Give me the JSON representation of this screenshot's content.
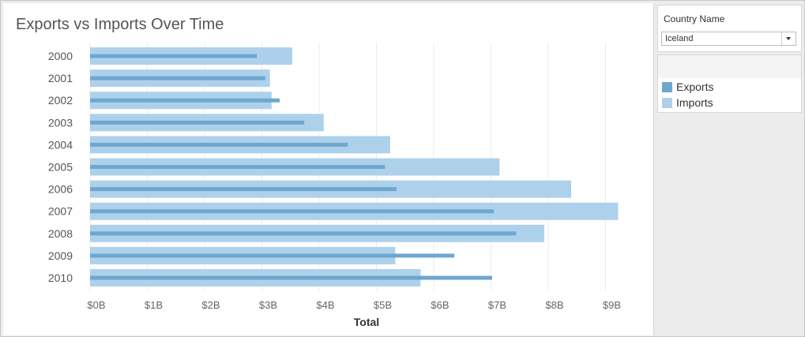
{
  "chart_data": {
    "type": "bar",
    "title": "Exports vs Imports Over Time",
    "orientation": "horizontal",
    "categories": [
      "2000",
      "2001",
      "2002",
      "2003",
      "2004",
      "2005",
      "2006",
      "2007",
      "2008",
      "2009",
      "2010"
    ],
    "series": [
      {
        "name": "Imports",
        "values": [
          3.53,
          3.14,
          3.17,
          4.08,
          5.24,
          7.15,
          8.4,
          9.22,
          7.93,
          5.33,
          5.77
        ],
        "color": "#aed1eb"
      },
      {
        "name": "Exports",
        "values": [
          2.91,
          3.06,
          3.31,
          3.74,
          4.5,
          5.15,
          5.35,
          7.05,
          7.44,
          6.36,
          7.02
        ],
        "color": "#6ea7d0"
      }
    ],
    "xlabel": "Total",
    "ylabel": "",
    "xlim": [
      0,
      9.7
    ],
    "xticks": [
      0,
      1,
      2,
      3,
      4,
      5,
      6,
      7,
      8,
      9
    ],
    "xtick_labels": [
      "$0B",
      "$1B",
      "$2B",
      "$3B",
      "$4B",
      "$5B",
      "$6B",
      "$7B",
      "$8B",
      "$9B"
    ],
    "unit": "$ billions",
    "grid": "vertical",
    "legend": "right panel"
  },
  "filter": {
    "label": "Country Name",
    "value": "Iceland"
  },
  "legend": {
    "items": [
      {
        "label": "Exports",
        "color": "#6ea7d0"
      },
      {
        "label": "Imports",
        "color": "#aed1eb"
      }
    ]
  }
}
